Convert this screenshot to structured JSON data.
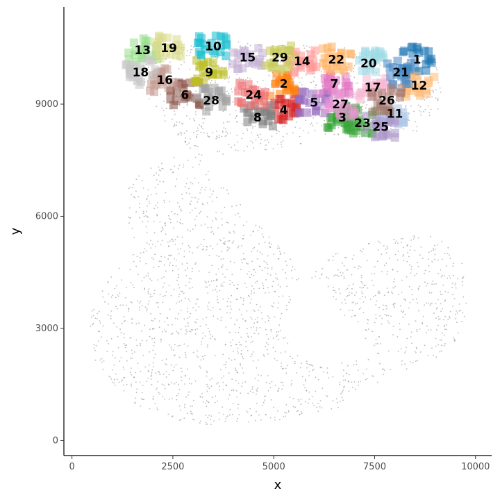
{
  "chart_data": {
    "type": "scatter",
    "title": "",
    "xlabel": "x",
    "ylabel": "y",
    "xlim": [
      -200,
      10400
    ],
    "ylim": [
      -400,
      11600
    ],
    "x_ticks": [
      0,
      2500,
      5000,
      7500,
      10000
    ],
    "x_tick_labels": [
      "0",
      "2500",
      "5000",
      "7500",
      "10000"
    ],
    "y_ticks": [
      0,
      3000,
      6000,
      9000
    ],
    "y_tick_labels": [
      "0",
      "3000",
      "6000",
      "9000"
    ],
    "grid": false,
    "legend": "none",
    "background_points": {
      "color": "#666666",
      "description_of_shape": "dense cloud of grey cells forming a C-shaped tissue outline",
      "outline": [
        [
          1500,
          9500
        ],
        [
          2000,
          10500
        ],
        [
          4500,
          10700
        ],
        [
          7000,
          10500
        ],
        [
          9000,
          10300
        ],
        [
          9200,
          9000
        ],
        [
          8500,
          8200
        ],
        [
          6000,
          8000
        ],
        [
          4500,
          7700
        ],
        [
          2500,
          7600
        ],
        [
          1400,
          7000
        ],
        [
          1400,
          5000
        ],
        [
          700,
          4000
        ],
        [
          400,
          3400
        ],
        [
          600,
          2000
        ],
        [
          1500,
          1000
        ],
        [
          3000,
          400
        ],
        [
          5000,
          500
        ],
        [
          6500,
          800
        ],
        [
          7500,
          1500
        ],
        [
          8000,
          1800
        ],
        [
          8200,
          2400
        ],
        [
          7600,
          2200
        ],
        [
          6000,
          2000
        ],
        [
          5300,
          2700
        ],
        [
          5200,
          3200
        ],
        [
          5700,
          4300
        ],
        [
          6500,
          5000
        ],
        [
          8000,
          5500
        ],
        [
          9000,
          5500
        ],
        [
          9700,
          4800
        ],
        [
          9800,
          3500
        ],
        [
          9500,
          2600
        ],
        [
          9300,
          2500
        ],
        [
          9000,
          2200
        ],
        [
          8500,
          2000
        ],
        [
          8000,
          1800
        ]
      ]
    },
    "regions": [
      {
        "id": "1",
        "color": "#1f77b4",
        "x": 8550,
        "y": 10200
      },
      {
        "id": "2",
        "color": "#ff7f0e",
        "x": 5250,
        "y": 9550
      },
      {
        "id": "3",
        "color": "#2ca02c",
        "x": 6700,
        "y": 8650
      },
      {
        "id": "4",
        "color": "#d62728",
        "x": 5250,
        "y": 8850
      },
      {
        "id": "5",
        "color": "#9467bd",
        "x": 6000,
        "y": 9050
      },
      {
        "id": "6",
        "color": "#8c564b",
        "x": 2800,
        "y": 9250
      },
      {
        "id": "7",
        "color": "#e377c2",
        "x": 6500,
        "y": 9550
      },
      {
        "id": "8",
        "color": "#7f7f7f",
        "x": 4600,
        "y": 8650
      },
      {
        "id": "9",
        "color": "#bcbd22",
        "x": 3400,
        "y": 9850
      },
      {
        "id": "10",
        "color": "#17becf",
        "x": 3500,
        "y": 10550
      },
      {
        "id": "11",
        "color": "#aec7e8",
        "x": 8000,
        "y": 8750
      },
      {
        "id": "12",
        "color": "#ffbb78",
        "x": 8600,
        "y": 9500
      },
      {
        "id": "13",
        "color": "#98df8a",
        "x": 1750,
        "y": 10450
      },
      {
        "id": "14",
        "color": "#ff9896",
        "x": 5700,
        "y": 10150
      },
      {
        "id": "15",
        "color": "#c5b0d5",
        "x": 4350,
        "y": 10250
      },
      {
        "id": "16",
        "color": "#c49c94",
        "x": 2300,
        "y": 9650
      },
      {
        "id": "17",
        "color": "#f7b6d2",
        "x": 7450,
        "y": 9450
      },
      {
        "id": "18",
        "color": "#c7c7c7",
        "x": 1700,
        "y": 9850
      },
      {
        "id": "19",
        "color": "#dbdb8d",
        "x": 2400,
        "y": 10500
      },
      {
        "id": "20",
        "color": "#9edae5",
        "x": 7350,
        "y": 10100
      },
      {
        "id": "21",
        "color": "#4b8bc6",
        "x": 8150,
        "y": 9850
      },
      {
        "id": "22",
        "color": "#ffb061",
        "x": 6550,
        "y": 10200
      },
      {
        "id": "23",
        "color": "#3aa63a",
        "x": 7200,
        "y": 8500
      },
      {
        "id": "24",
        "color": "#ef6e6f",
        "x": 4500,
        "y": 9250
      },
      {
        "id": "25",
        "color": "#a993c8",
        "x": 7650,
        "y": 8400
      },
      {
        "id": "26",
        "color": "#a77a70",
        "x": 7800,
        "y": 9100
      },
      {
        "id": "27",
        "color": "#ea97d3",
        "x": 6650,
        "y": 9000
      },
      {
        "id": "28",
        "color": "#a3a3a3",
        "x": 3450,
        "y": 9100
      },
      {
        "id": "29",
        "color": "#c9ca59",
        "x": 5150,
        "y": 10250
      }
    ]
  }
}
